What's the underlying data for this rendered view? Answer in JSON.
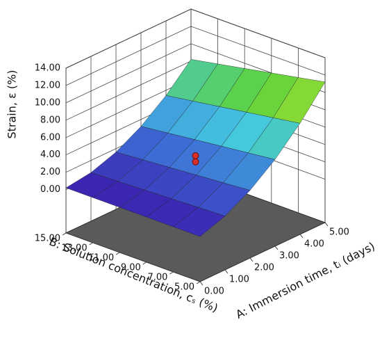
{
  "chart_data": {
    "type": "surface",
    "x_label": "A: Immersion time, tᵢ (days)",
    "y_label": "B: Solution concentration, cₛ (%)",
    "z_label": "Strain, ε (%)",
    "x": [
      0,
      1,
      2,
      3,
      4,
      5
    ],
    "y": [
      5,
      7,
      9,
      11,
      13,
      15
    ],
    "z": [
      [
        0.2,
        1.2,
        2.8,
        5.0,
        7.8,
        11.2
      ],
      [
        0.2,
        1.08,
        2.56,
        4.64,
        7.32,
        10.6
      ],
      [
        0.2,
        0.96,
        2.32,
        4.28,
        6.84,
        10.0
      ],
      [
        0.2,
        0.84,
        2.08,
        3.92,
        6.36,
        9.4
      ],
      [
        0.2,
        0.72,
        1.84,
        3.56,
        5.88,
        8.8
      ],
      [
        0.2,
        0.6,
        1.6,
        3.2,
        5.4,
        8.2
      ]
    ],
    "points": {
      "x": [
        2.5,
        2.5
      ],
      "y": [
        10,
        10
      ],
      "z": [
        3.3,
        2.6
      ],
      "color": "#d9302b"
    },
    "xlim": [
      0,
      5
    ],
    "ylim": [
      5,
      15
    ],
    "zlim": [
      -5,
      14
    ],
    "xticks": [
      {
        "value": 0,
        "label": "0.00"
      },
      {
        "value": 1,
        "label": "1.00"
      },
      {
        "value": 2,
        "label": "2.00"
      },
      {
        "value": 3,
        "label": "3.00"
      },
      {
        "value": 4,
        "label": "4.00"
      },
      {
        "value": 5,
        "label": "5.00"
      }
    ],
    "yticks": [
      {
        "value": 5,
        "label": "5.00"
      },
      {
        "value": 7,
        "label": "7.00"
      },
      {
        "value": 9,
        "label": "9.00"
      },
      {
        "value": 11,
        "label": "11.00"
      },
      {
        "value": 13,
        "label": "13.00"
      },
      {
        "value": 15,
        "label": "15.00"
      }
    ],
    "zticks": [
      {
        "value": 0,
        "label": "0.00"
      },
      {
        "value": 2,
        "label": "2.00"
      },
      {
        "value": 4,
        "label": "4.00"
      },
      {
        "value": 6,
        "label": "6.00"
      },
      {
        "value": 8,
        "label": "8.00"
      },
      {
        "value": 10,
        "label": "10.00"
      },
      {
        "value": 12,
        "label": "12.00"
      },
      {
        "value": 14,
        "label": "14.00"
      }
    ],
    "colormap": [
      "#3b1fae",
      "#3d6fd6",
      "#44c7e0",
      "#5ed23c",
      "#e8ea2c"
    ],
    "floor_color": "#5a5a5a",
    "grid": true
  }
}
